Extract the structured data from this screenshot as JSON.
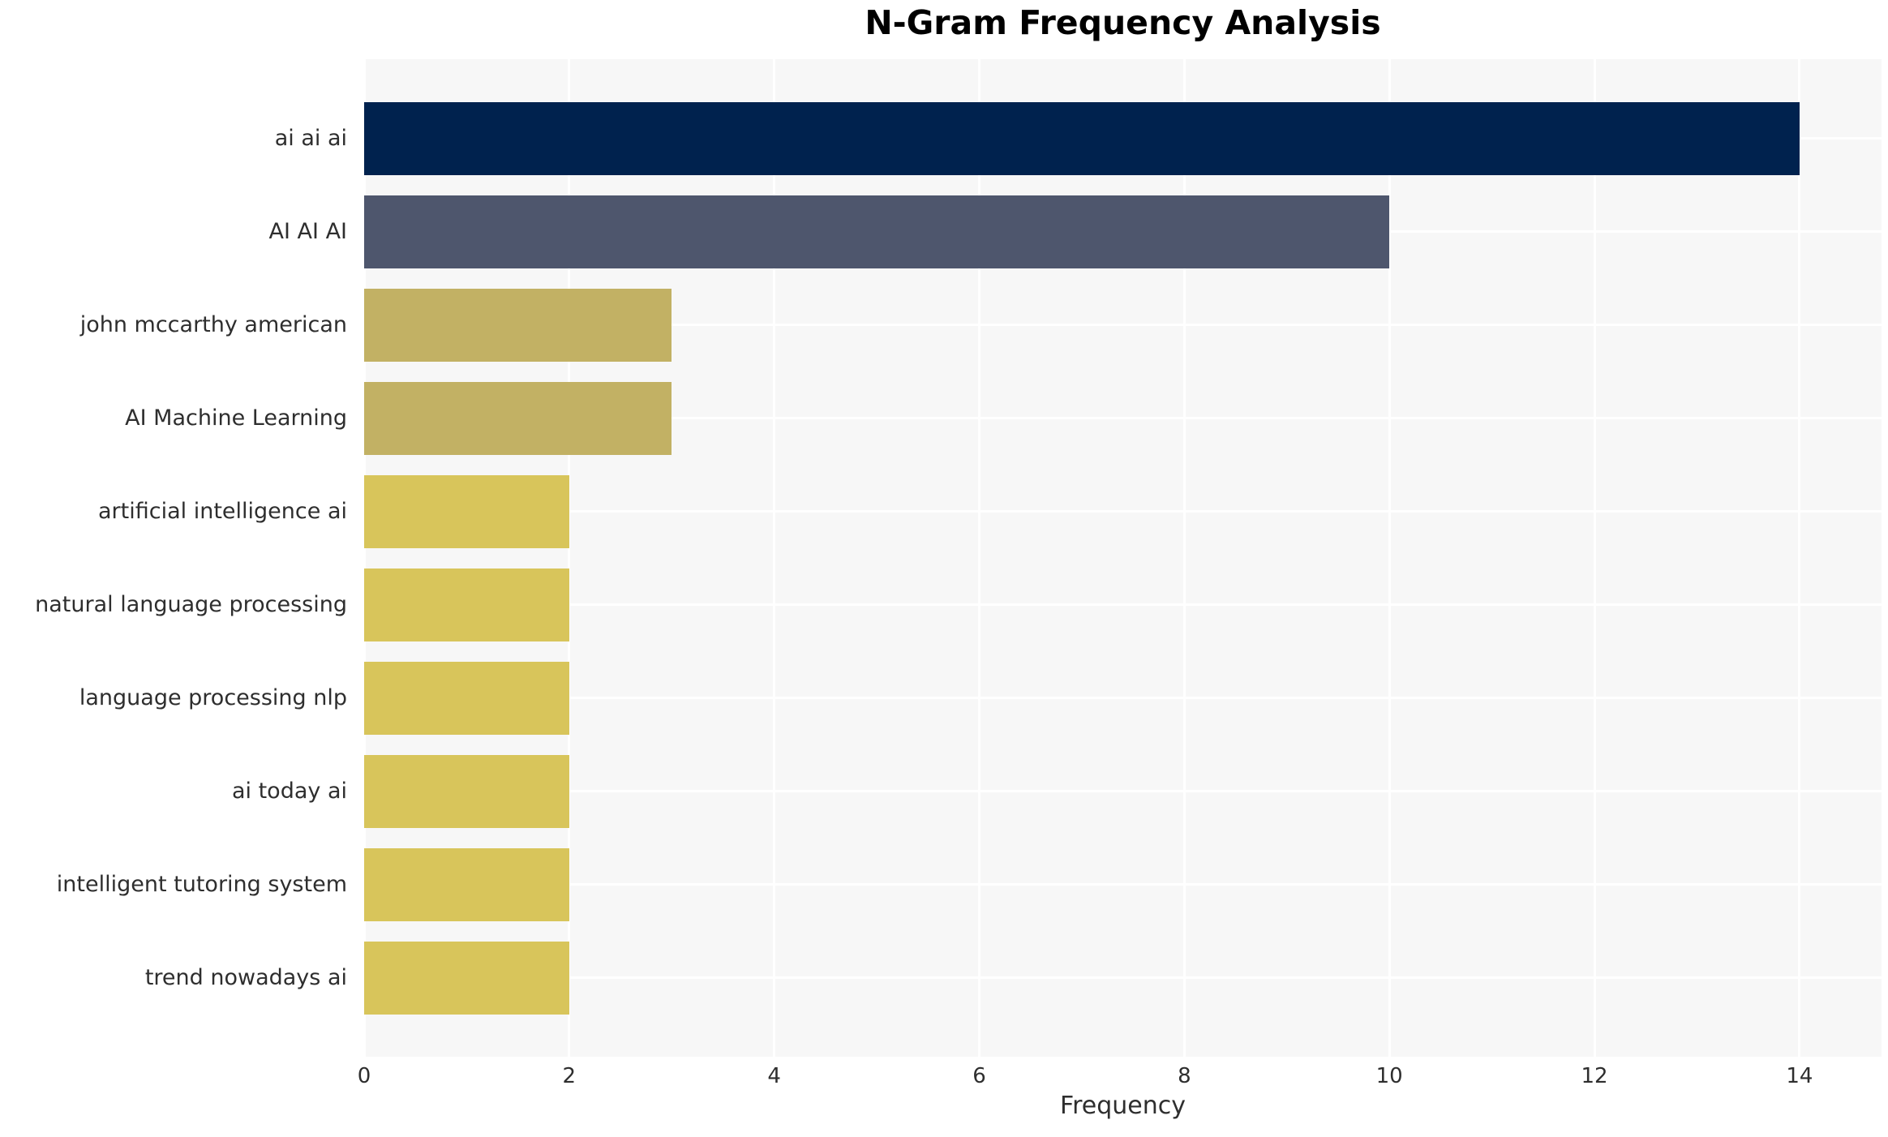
{
  "chart_data": {
    "type": "bar",
    "orientation": "horizontal",
    "title": "N-Gram Frequency Analysis",
    "xlabel": "Frequency",
    "ylabel": "",
    "categories": [
      "ai ai ai",
      "AI AI AI",
      "john mccarthy american",
      "AI Machine Learning",
      "artificial intelligence ai",
      "natural language processing",
      "language processing nlp",
      "ai today ai",
      "intelligent tutoring system",
      "trend nowadays ai"
    ],
    "values": [
      14,
      10,
      3,
      3,
      2,
      2,
      2,
      2,
      2,
      2
    ],
    "bar_colors": [
      "#00224e",
      "#4e566d",
      "#c2b164",
      "#c2b164",
      "#d8c55b",
      "#d8c55b",
      "#d8c55b",
      "#d8c55b",
      "#d8c55b",
      "#d8c55b"
    ],
    "xticks": [
      0,
      2,
      4,
      6,
      8,
      10,
      12,
      14
    ],
    "xlim": [
      0,
      14.8
    ],
    "grid": true,
    "legend": false,
    "plot_background": "#f7f7f7",
    "grid_color": "#ffffff",
    "tick_label_color": "#2e2e2e",
    "title_color": "#000000"
  }
}
